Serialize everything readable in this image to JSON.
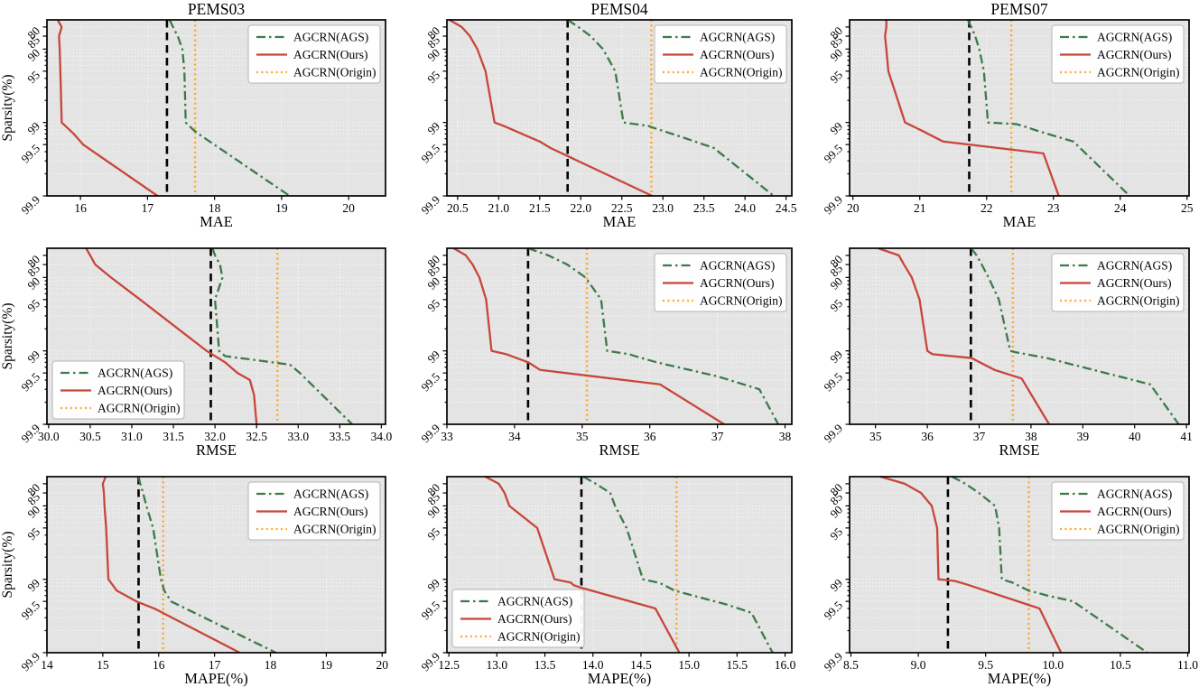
{
  "figure": {
    "ylabel": "Sparsity(%)",
    "ytick_labels": [
      "80",
      "85",
      "90",
      "95",
      "99",
      "99.5",
      "99.9"
    ],
    "ytick_values": [
      80,
      85,
      90,
      95,
      99,
      99.5,
      99.9
    ],
    "yminor_values": [
      91,
      92,
      93,
      94,
      96,
      97,
      98,
      99.1,
      99.2,
      99.3,
      99.4,
      99.6,
      99.7,
      99.8
    ],
    "ylim": [
      75,
      99.9
    ],
    "legend": [
      {
        "label": "AGCRN(AGS)",
        "series": "ags",
        "style": "dashdot",
        "color": "#3d7a49"
      },
      {
        "label": "AGCRN(Ours)",
        "series": "ours",
        "style": "solid",
        "color": "#c8463a"
      },
      {
        "label": "AGCRN(Origin)",
        "series": "origin",
        "style": "dotted",
        "color": "#ffa72b"
      }
    ],
    "colors": {
      "ags": "#3d7a49",
      "ours": "#c8463a",
      "origin": "#ffa72b",
      "pruned_vline": "#000000",
      "axes_bg": "#e4e4e4",
      "grid": "#ffffff",
      "spine": "#000000",
      "text": "#000000",
      "legend_bg": "#ffffff",
      "legend_border": "#b5b5b5"
    }
  },
  "chart_data": [
    {
      "type": "line",
      "id": "pems03-mae",
      "title": "PEMS03",
      "xlabel": "MAE",
      "show_ylabel": true,
      "legend_pos": "top-right",
      "xlim": [
        15.5,
        20.55
      ],
      "xticks": [
        16,
        17,
        18,
        19,
        20
      ],
      "xtick_labels": [
        "16",
        "17",
        "18",
        "19",
        "20"
      ],
      "vlines": {
        "black": 17.29,
        "orange": 17.71
      },
      "series": {
        "ags": [
          [
            17.33,
            75
          ],
          [
            17.38,
            80
          ],
          [
            17.45,
            85
          ],
          [
            17.52,
            90
          ],
          [
            17.55,
            95
          ],
          [
            17.57,
            99
          ],
          [
            17.68,
            99.2
          ],
          [
            17.76,
            99.3
          ],
          [
            19.12,
            99.9
          ]
        ],
        "ours": [
          [
            15.66,
            75
          ],
          [
            15.72,
            80
          ],
          [
            15.68,
            85
          ],
          [
            15.69,
            90
          ],
          [
            15.7,
            95
          ],
          [
            15.72,
            99
          ],
          [
            15.9,
            99.3
          ],
          [
            16.04,
            99.5
          ],
          [
            17.15,
            99.9
          ]
        ]
      }
    },
    {
      "type": "line",
      "id": "pems04-mae",
      "title": "PEMS04",
      "xlabel": "MAE",
      "show_ylabel": false,
      "legend_pos": "top-right",
      "xlim": [
        20.37,
        24.57
      ],
      "xticks": [
        20.5,
        21,
        21.5,
        22,
        22.5,
        23,
        23.5,
        24,
        24.5
      ],
      "xtick_labels": [
        "20.5",
        "21.0",
        "21.5",
        "22.0",
        "22.5",
        "23.0",
        "23.5",
        "24.0",
        "24.5"
      ],
      "vlines": {
        "black": 21.84,
        "orange": 22.86
      },
      "series": {
        "ags": [
          [
            21.84,
            75
          ],
          [
            21.97,
            80
          ],
          [
            22.12,
            85
          ],
          [
            22.27,
            90
          ],
          [
            22.42,
            95
          ],
          [
            22.52,
            99
          ],
          [
            22.82,
            99.1
          ],
          [
            22.88,
            99.15
          ],
          [
            23.2,
            99.35
          ],
          [
            23.62,
            99.55
          ],
          [
            24.35,
            99.9
          ]
        ],
        "ours": [
          [
            20.4,
            75
          ],
          [
            20.55,
            80
          ],
          [
            20.65,
            85
          ],
          [
            20.74,
            90
          ],
          [
            20.84,
            95
          ],
          [
            20.95,
            99
          ],
          [
            21.06,
            99.1
          ],
          [
            21.5,
            99.45
          ],
          [
            21.63,
            99.55
          ],
          [
            22.87,
            99.9
          ]
        ]
      }
    },
    {
      "type": "line",
      "id": "pems07-mae",
      "title": "PEMS07",
      "xlabel": "MAE",
      "show_ylabel": false,
      "legend_pos": "top-right",
      "xlim": [
        19.95,
        25.03
      ],
      "xticks": [
        20,
        21,
        22,
        23,
        24,
        25
      ],
      "xtick_labels": [
        "20",
        "21",
        "22",
        "23",
        "24",
        "25"
      ],
      "vlines": {
        "black": 21.74,
        "orange": 22.37
      },
      "series": {
        "ags": [
          [
            21.72,
            75
          ],
          [
            21.77,
            80
          ],
          [
            21.83,
            85
          ],
          [
            21.89,
            90
          ],
          [
            21.96,
            95
          ],
          [
            22.02,
            99
          ],
          [
            22.45,
            99.05
          ],
          [
            22.62,
            99.15
          ],
          [
            22.8,
            99.25
          ],
          [
            23.3,
            99.45
          ],
          [
            24.14,
            99.9
          ]
        ],
        "ours": [
          [
            20.5,
            75
          ],
          [
            20.5,
            80
          ],
          [
            20.48,
            85
          ],
          [
            20.5,
            90
          ],
          [
            20.53,
            95
          ],
          [
            20.78,
            99
          ],
          [
            21.0,
            99.2
          ],
          [
            21.35,
            99.45
          ],
          [
            22.85,
            99.62
          ],
          [
            23.08,
            99.9
          ]
        ]
      }
    },
    {
      "type": "line",
      "id": "pems03-rmse",
      "title": "",
      "xlabel": "RMSE",
      "show_ylabel": true,
      "legend_pos": "bottom-left",
      "xlim": [
        29.98,
        34.05
      ],
      "xticks": [
        30,
        30.5,
        31,
        31.5,
        32,
        32.5,
        33,
        33.5,
        34
      ],
      "xtick_labels": [
        "30.0",
        "30.5",
        "31.0",
        "31.5",
        "32.0",
        "32.5",
        "33.0",
        "33.5",
        "34.0"
      ],
      "vlines": {
        "black": 31.95,
        "orange": 32.75
      },
      "series": {
        "ags": [
          [
            31.97,
            75
          ],
          [
            32.0,
            80
          ],
          [
            32.06,
            85
          ],
          [
            32.09,
            90
          ],
          [
            32.0,
            95
          ],
          [
            32.05,
            99
          ],
          [
            32.12,
            99.15
          ],
          [
            32.9,
            99.35
          ],
          [
            33.02,
            99.5
          ],
          [
            33.65,
            99.9
          ]
        ],
        "ours": [
          [
            30.45,
            75
          ],
          [
            30.5,
            80
          ],
          [
            30.56,
            85
          ],
          [
            30.75,
            90
          ],
          [
            31.1,
            95
          ],
          [
            31.9,
            99
          ],
          [
            32.0,
            99.15
          ],
          [
            32.12,
            99.3
          ],
          [
            32.27,
            99.5
          ],
          [
            32.42,
            99.6
          ],
          [
            32.47,
            99.75
          ],
          [
            32.5,
            99.9
          ]
        ]
      }
    },
    {
      "type": "line",
      "id": "pems04-rmse",
      "title": "",
      "xlabel": "RMSE",
      "show_ylabel": false,
      "legend_pos": "top-right",
      "xlim": [
        33.0,
        38.1
      ],
      "xticks": [
        33,
        34,
        35,
        36,
        37,
        38
      ],
      "xtick_labels": [
        "33",
        "34",
        "35",
        "36",
        "37",
        "38"
      ],
      "vlines": {
        "black": 34.2,
        "orange": 35.07
      },
      "series": {
        "ags": [
          [
            34.2,
            75
          ],
          [
            34.5,
            80
          ],
          [
            34.78,
            85
          ],
          [
            35.05,
            90
          ],
          [
            35.28,
            95
          ],
          [
            35.37,
            99
          ],
          [
            35.7,
            99.1
          ],
          [
            35.78,
            99.15
          ],
          [
            36.1,
            99.3
          ],
          [
            37.0,
            99.55
          ],
          [
            37.62,
            99.7
          ],
          [
            37.9,
            99.9
          ]
        ],
        "ours": [
          [
            33.1,
            75
          ],
          [
            33.28,
            80
          ],
          [
            33.38,
            85
          ],
          [
            33.48,
            90
          ],
          [
            33.58,
            95
          ],
          [
            33.66,
            99
          ],
          [
            33.88,
            99.1
          ],
          [
            34.2,
            99.3
          ],
          [
            34.38,
            99.45
          ],
          [
            36.15,
            99.65
          ],
          [
            37.1,
            99.9
          ]
        ]
      }
    },
    {
      "type": "line",
      "id": "pems07-rmse",
      "title": "",
      "xlabel": "RMSE",
      "show_ylabel": false,
      "legend_pos": "top-right",
      "xlim": [
        34.5,
        41.05
      ],
      "xticks": [
        35,
        36,
        37,
        38,
        39,
        40,
        41
      ],
      "xtick_labels": [
        "35",
        "36",
        "37",
        "38",
        "39",
        "40",
        "41"
      ],
      "vlines": {
        "black": 36.84,
        "orange": 37.65
      },
      "series": {
        "ags": [
          [
            36.85,
            75
          ],
          [
            36.95,
            80
          ],
          [
            37.05,
            85
          ],
          [
            37.18,
            90
          ],
          [
            37.38,
            95
          ],
          [
            37.6,
            99
          ],
          [
            37.73,
            99.05
          ],
          [
            38.3,
            99.2
          ],
          [
            39.0,
            99.4
          ],
          [
            40.3,
            99.65
          ],
          [
            40.85,
            99.9
          ]
        ],
        "ours": [
          [
            35.05,
            75
          ],
          [
            35.45,
            80
          ],
          [
            35.55,
            85
          ],
          [
            35.7,
            90
          ],
          [
            35.85,
            95
          ],
          [
            36.0,
            99
          ],
          [
            36.1,
            99.1
          ],
          [
            36.85,
            99.2
          ],
          [
            37.3,
            99.45
          ],
          [
            37.82,
            99.58
          ],
          [
            38.35,
            99.9
          ]
        ]
      }
    },
    {
      "type": "line",
      "id": "pems03-mape",
      "title": "",
      "xlabel": "MAPE(%)",
      "show_ylabel": true,
      "legend_pos": "top-right",
      "xlim": [
        14.0,
        20.06
      ],
      "xticks": [
        14,
        15,
        16,
        17,
        18,
        19,
        20
      ],
      "xtick_labels": [
        "14",
        "15",
        "16",
        "17",
        "18",
        "19",
        "20"
      ],
      "vlines": {
        "black": 15.64,
        "orange": 16.08
      },
      "series": {
        "ags": [
          [
            15.64,
            75
          ],
          [
            15.67,
            80
          ],
          [
            15.72,
            85
          ],
          [
            15.78,
            90
          ],
          [
            15.9,
            95
          ],
          [
            16.04,
            99
          ],
          [
            16.1,
            99.3
          ],
          [
            16.22,
            99.5
          ],
          [
            18.1,
            99.9
          ]
        ],
        "ours": [
          [
            15.05,
            75
          ],
          [
            15.0,
            80
          ],
          [
            15.02,
            85
          ],
          [
            15.03,
            90
          ],
          [
            15.06,
            95
          ],
          [
            15.1,
            99
          ],
          [
            15.25,
            99.3
          ],
          [
            15.6,
            99.5
          ],
          [
            15.92,
            99.6
          ],
          [
            17.45,
            99.9
          ]
        ]
      }
    },
    {
      "type": "line",
      "id": "pems04-mape",
      "title": "",
      "xlabel": "MAPE(%)",
      "show_ylabel": false,
      "legend_pos": "bottom-left",
      "xlim": [
        12.48,
        16.07
      ],
      "xticks": [
        12.5,
        13,
        13.5,
        14,
        14.5,
        15,
        15.5,
        16
      ],
      "xtick_labels": [
        "12.5",
        "13.0",
        "13.5",
        "14.0",
        "14.5",
        "15.0",
        "15.5",
        "16.0"
      ],
      "vlines": {
        "black": 13.88,
        "orange": 14.87
      },
      "series": {
        "ags": [
          [
            13.9,
            75
          ],
          [
            14.03,
            80
          ],
          [
            14.18,
            85
          ],
          [
            14.23,
            90
          ],
          [
            14.35,
            95
          ],
          [
            14.52,
            99
          ],
          [
            14.68,
            99.1
          ],
          [
            14.73,
            99.15
          ],
          [
            14.85,
            99.3
          ],
          [
            15.4,
            99.55
          ],
          [
            15.65,
            99.65
          ],
          [
            15.87,
            99.9
          ]
        ],
        "ours": [
          [
            12.88,
            75
          ],
          [
            13.02,
            80
          ],
          [
            13.08,
            85
          ],
          [
            13.13,
            90
          ],
          [
            13.42,
            95
          ],
          [
            13.6,
            99
          ],
          [
            13.77,
            99.1
          ],
          [
            13.8,
            99.17
          ],
          [
            13.86,
            99.22
          ],
          [
            14.65,
            99.6
          ],
          [
            14.9,
            99.9
          ]
        ]
      }
    },
    {
      "type": "line",
      "id": "pems07-mape",
      "title": "",
      "xlabel": "MAPE(%)",
      "show_ylabel": false,
      "legend_pos": "top-right",
      "xlim": [
        8.49,
        11.01
      ],
      "xticks": [
        8.5,
        9,
        9.5,
        10,
        10.5,
        11
      ],
      "xtick_labels": [
        "8.5",
        "9.0",
        "9.5",
        "10.0",
        "10.5",
        "11.0"
      ],
      "vlines": {
        "black": 9.22,
        "orange": 9.82
      },
      "series": {
        "ags": [
          [
            9.25,
            75
          ],
          [
            9.35,
            80
          ],
          [
            9.45,
            85
          ],
          [
            9.57,
            90
          ],
          [
            9.6,
            95
          ],
          [
            9.62,
            99
          ],
          [
            9.7,
            99.1
          ],
          [
            9.82,
            99.3
          ],
          [
            9.96,
            99.4
          ],
          [
            10.15,
            99.5
          ],
          [
            10.7,
            99.9
          ]
        ],
        "ours": [
          [
            8.72,
            75
          ],
          [
            8.9,
            80
          ],
          [
            9.02,
            85
          ],
          [
            9.1,
            90
          ],
          [
            9.14,
            95
          ],
          [
            9.15,
            99
          ],
          [
            9.27,
            99.05
          ],
          [
            9.36,
            99.15
          ],
          [
            9.9,
            99.6
          ],
          [
            10.06,
            99.9
          ]
        ]
      }
    }
  ]
}
